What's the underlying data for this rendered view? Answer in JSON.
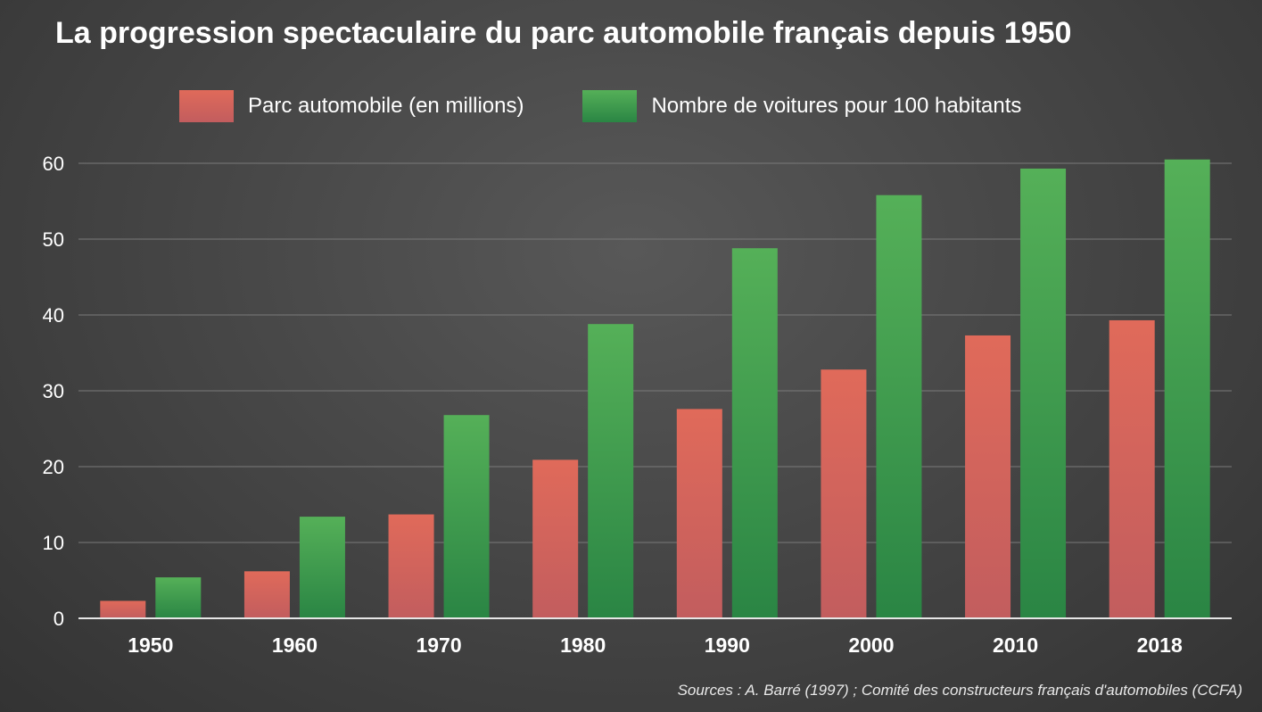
{
  "title": "La progression spectaculaire du parc automobile français depuis 1950",
  "source": "Sources : A. Barré (1997)  ; Comité des constructeurs français d'automobiles (CCFA)",
  "chart_data": {
    "type": "bar",
    "title": "La progression spectaculaire du parc automobile français depuis 1950",
    "categories": [
      "1950",
      "1960",
      "1970",
      "1980",
      "1990",
      "2000",
      "2010",
      "2018"
    ],
    "series": [
      {
        "name": "Parc automobile (en millions)",
        "values": [
          2.3,
          6.2,
          13.7,
          20.9,
          27.6,
          32.8,
          37.3,
          39.3
        ],
        "color_top": "#e06a5a",
        "color_bottom": "#c25d5e"
      },
      {
        "name": "Nombre de voitures pour 100 habitants",
        "values": [
          5.4,
          13.4,
          26.8,
          38.8,
          48.8,
          55.8,
          59.3,
          60.5
        ],
        "color_top": "#55b058",
        "color_bottom": "#2a8544"
      }
    ],
    "yticks": [
      "0",
      "10",
      "20",
      "30",
      "40",
      "50",
      "60"
    ],
    "ylim": [
      0,
      60
    ],
    "xlabel": "",
    "ylabel": "",
    "grid": true,
    "legend_position": "top"
  }
}
